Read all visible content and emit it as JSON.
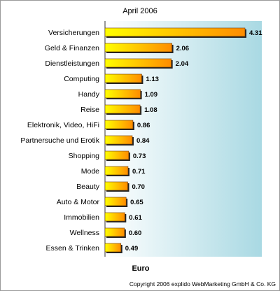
{
  "chart_data": {
    "type": "bar",
    "orientation": "horizontal",
    "title": "April 2006",
    "xlabel": "Euro",
    "ylabel": "",
    "xlim": [
      0,
      4.5
    ],
    "grid": false,
    "legend": "none",
    "categories": [
      "Versicherungen",
      "Geld & Finanzen",
      "Dienstleistungen",
      "Computing",
      "Handy",
      "Reise",
      "Elektronik, Video, HiFi",
      "Partnersuche und Erotik",
      "Shopping",
      "Mode",
      "Beauty",
      "Auto & Motor",
      "Immobilien",
      "Wellness",
      "Essen & Trinken"
    ],
    "values": [
      4.31,
      2.06,
      2.04,
      1.13,
      1.09,
      1.08,
      0.86,
      0.84,
      0.73,
      0.71,
      0.7,
      0.65,
      0.61,
      0.6,
      0.49
    ],
    "value_labels": [
      "4.31",
      "2.06",
      "2.04",
      "1.13",
      "1.09",
      "1.08",
      "0.86",
      "0.84",
      "0.73",
      "0.71",
      "0.70",
      "0.65",
      "0.61",
      "0.60",
      "0.49"
    ],
    "colors": {
      "bar_light": "#ffff00",
      "bar_dark": "#ff8c00",
      "bar_shadow": "#222222",
      "plot_bg_left": "#ffffff",
      "plot_bg_right": "#a9d9e3"
    }
  },
  "footer": {
    "copyright": "Copyright 2006 explido WebMarketing GmbH & Co. KG"
  }
}
